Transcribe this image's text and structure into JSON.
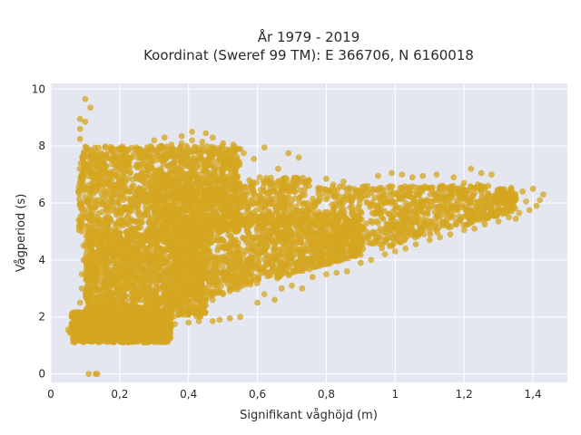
{
  "chart_data": {
    "type": "scatter",
    "title_line1": "År 1979 - 2019",
    "title_line2": "Koordinat (Sweref 99 TM): E 366706, N 6160018",
    "xlabel": "Signifikant våghöjd (m)",
    "ylabel": "Vågperiod (s)",
    "xlim": [
      0,
      1.5
    ],
    "ylim": [
      -0.3,
      10.2
    ],
    "x_ticks": [
      {
        "value": 0,
        "label": "0"
      },
      {
        "value": 0.2,
        "label": "0,2"
      },
      {
        "value": 0.4,
        "label": "0,4"
      },
      {
        "value": 0.6,
        "label": "0,6"
      },
      {
        "value": 0.8,
        "label": "0,8"
      },
      {
        "value": 1.0,
        "label": "1"
      },
      {
        "value": 1.2,
        "label": "1,2"
      },
      {
        "value": 1.4,
        "label": "1,4"
      }
    ],
    "y_ticks": [
      {
        "value": 0,
        "label": "0"
      },
      {
        "value": 2,
        "label": "2"
      },
      {
        "value": 4,
        "label": "4"
      },
      {
        "value": 6,
        "label": "6"
      },
      {
        "value": 8,
        "label": "8"
      },
      {
        "value": 10,
        "label": "10"
      }
    ],
    "grid": true,
    "background_color": "#e5e7f0",
    "grid_color": "#ffffff",
    "marker_color": "#d4a520",
    "series": [
      {
        "points": [
          [
            0.1,
            9.65
          ],
          [
            0.115,
            9.35
          ],
          [
            0.085,
            8.95
          ],
          [
            0.1,
            8.85
          ],
          [
            0.085,
            8.6
          ],
          [
            0.085,
            8.25
          ],
          [
            0.11,
            0.0
          ],
          [
            0.13,
            0.0
          ],
          [
            0.135,
            0.0
          ],
          [
            0.05,
            1.55
          ],
          [
            0.055,
            1.45
          ],
          [
            0.06,
            1.65
          ],
          [
            0.07,
            1.5
          ],
          [
            0.075,
            1.35
          ],
          [
            0.08,
            1.25
          ],
          [
            0.09,
            1.2
          ],
          [
            0.1,
            1.15
          ],
          [
            0.12,
            1.15
          ],
          [
            0.15,
            1.2
          ],
          [
            0.18,
            1.3
          ],
          [
            0.08,
            2.0
          ],
          [
            0.085,
            2.5
          ],
          [
            0.09,
            3.0
          ],
          [
            0.09,
            3.5
          ],
          [
            0.095,
            4.0
          ],
          [
            0.095,
            4.5
          ],
          [
            0.09,
            5.0
          ],
          [
            0.095,
            5.5
          ],
          [
            0.09,
            6.0
          ],
          [
            0.09,
            6.5
          ],
          [
            0.09,
            7.0
          ],
          [
            0.1,
            7.3
          ],
          [
            0.12,
            7.55
          ],
          [
            0.15,
            7.7
          ],
          [
            0.18,
            7.8
          ],
          [
            0.21,
            7.9
          ],
          [
            0.25,
            7.85
          ],
          [
            0.28,
            7.95
          ],
          [
            0.32,
            8.0
          ],
          [
            0.35,
            8.05
          ],
          [
            0.38,
            8.1
          ],
          [
            0.41,
            8.2
          ],
          [
            0.44,
            8.15
          ],
          [
            0.47,
            8.3
          ],
          [
            0.5,
            8.1
          ],
          [
            0.53,
            8.05
          ],
          [
            0.55,
            7.9
          ],
          [
            0.56,
            7.75
          ],
          [
            0.52,
            7.6
          ],
          [
            0.49,
            7.55
          ],
          [
            0.45,
            8.45
          ],
          [
            0.41,
            8.5
          ],
          [
            0.38,
            8.35
          ],
          [
            0.3,
            8.2
          ],
          [
            0.33,
            8.3
          ],
          [
            0.62,
            7.95
          ],
          [
            0.69,
            7.75
          ],
          [
            0.72,
            7.6
          ],
          [
            0.59,
            7.55
          ],
          [
            0.66,
            7.2
          ],
          [
            0.49,
            1.9
          ],
          [
            0.52,
            1.95
          ],
          [
            0.55,
            2.0
          ],
          [
            0.47,
            1.85
          ],
          [
            0.43,
            1.85
          ],
          [
            0.4,
            1.8
          ],
          [
            0.36,
            1.75
          ],
          [
            0.32,
            1.75
          ],
          [
            0.28,
            1.7
          ],
          [
            0.24,
            1.65
          ],
          [
            0.22,
            1.6
          ],
          [
            0.18,
            1.5
          ],
          [
            0.6,
            2.5
          ],
          [
            0.62,
            2.8
          ],
          [
            0.65,
            2.6
          ],
          [
            0.67,
            3.0
          ],
          [
            0.7,
            3.1
          ],
          [
            0.73,
            3.0
          ],
          [
            0.76,
            3.4
          ],
          [
            0.8,
            3.5
          ],
          [
            0.83,
            3.55
          ],
          [
            0.86,
            3.6
          ],
          [
            0.9,
            3.9
          ],
          [
            0.93,
            4.0
          ],
          [
            0.97,
            4.2
          ],
          [
            1.0,
            4.3
          ],
          [
            1.03,
            4.4
          ],
          [
            1.06,
            4.55
          ],
          [
            1.1,
            4.7
          ],
          [
            1.13,
            4.8
          ],
          [
            1.16,
            4.9
          ],
          [
            1.2,
            5.05
          ],
          [
            1.23,
            5.1
          ],
          [
            1.26,
            5.25
          ],
          [
            1.3,
            5.35
          ],
          [
            1.33,
            5.5
          ],
          [
            1.36,
            5.65
          ],
          [
            1.39,
            5.75
          ],
          [
            1.41,
            5.9
          ],
          [
            1.42,
            6.1
          ],
          [
            1.43,
            6.3
          ],
          [
            1.4,
            6.5
          ],
          [
            1.37,
            6.4
          ],
          [
            1.34,
            6.3
          ],
          [
            1.3,
            6.45
          ],
          [
            1.27,
            6.6
          ],
          [
            1.24,
            6.65
          ],
          [
            1.2,
            6.7
          ],
          [
            1.22,
            7.2
          ],
          [
            1.25,
            7.05
          ],
          [
            1.28,
            7.0
          ],
          [
            1.17,
            6.9
          ],
          [
            1.12,
            7.0
          ],
          [
            1.08,
            6.95
          ],
          [
            1.05,
            6.9
          ],
          [
            1.02,
            7.0
          ],
          [
            0.99,
            7.05
          ],
          [
            0.95,
            6.95
          ],
          [
            0.92,
            6.6
          ],
          [
            0.88,
            6.5
          ],
          [
            0.85,
            6.75
          ],
          [
            0.82,
            6.65
          ],
          [
            0.8,
            6.85
          ],
          [
            0.78,
            6.5
          ],
          [
            0.75,
            6.6
          ],
          [
            0.71,
            6.85
          ],
          [
            0.68,
            6.7
          ],
          [
            0.65,
            6.55
          ],
          [
            0.62,
            6.4
          ],
          [
            1.03,
            5.55
          ],
          [
            1.07,
            5.7
          ],
          [
            1.12,
            5.5
          ],
          [
            1.18,
            5.85
          ],
          [
            1.24,
            5.75
          ],
          [
            1.29,
            5.6
          ],
          [
            1.33,
            6.0
          ],
          [
            1.35,
            5.45
          ],
          [
            1.38,
            6.05
          ],
          [
            0.7,
            5.6
          ],
          [
            0.75,
            5.75
          ],
          [
            0.8,
            5.55
          ],
          [
            0.85,
            5.8
          ],
          [
            0.9,
            5.7
          ],
          [
            0.95,
            5.9
          ],
          [
            0.6,
            5.0
          ],
          [
            0.65,
            5.2
          ],
          [
            0.7,
            4.9
          ],
          [
            0.75,
            5.1
          ],
          [
            0.8,
            4.8
          ],
          [
            0.85,
            5.0
          ],
          [
            0.6,
            4.2
          ],
          [
            0.65,
            4.4
          ],
          [
            0.7,
            4.1
          ],
          [
            0.75,
            4.3
          ],
          [
            0.8,
            4.2
          ],
          [
            0.85,
            4.5
          ],
          [
            0.55,
            3.2
          ],
          [
            0.58,
            3.5
          ],
          [
            0.52,
            3.0
          ],
          [
            0.5,
            2.8
          ],
          [
            0.47,
            2.6
          ],
          [
            0.45,
            2.4
          ],
          [
            0.9,
            5.2
          ],
          [
            0.95,
            5.3
          ],
          [
            1.0,
            5.1
          ],
          [
            1.05,
            5.25
          ],
          [
            1.1,
            5.15
          ],
          [
            1.15,
            5.4
          ],
          [
            0.9,
            4.6
          ],
          [
            0.95,
            4.8
          ],
          [
            1.0,
            4.9
          ],
          [
            1.05,
            4.95
          ],
          [
            1.1,
            5.0
          ],
          [
            1.15,
            5.2
          ],
          [
            0.5,
            6.0
          ],
          [
            0.55,
            6.2
          ],
          [
            0.6,
            6.0
          ],
          [
            0.52,
            6.5
          ],
          [
            0.58,
            6.7
          ],
          [
            0.45,
            6.4
          ]
        ],
        "clusters": [
          {
            "x_range": [
              0.08,
              0.55
            ],
            "y_range": [
              5.0,
              8.0
            ],
            "count": 1400
          },
          {
            "x_range": [
              0.1,
              0.45
            ],
            "y_range": [
              2.0,
              5.0
            ],
            "count": 1600
          },
          {
            "x_range": [
              0.06,
              0.35
            ],
            "y_range": [
              1.1,
              2.2
            ],
            "count": 1000
          },
          {
            "x_range": [
              0.35,
              0.9
            ],
            "y_range": [
              2.3,
              5.6
            ],
            "count": 1200
          },
          {
            "x_range": [
              0.3,
              0.75
            ],
            "y_range": [
              5.2,
              6.9
            ],
            "count": 600
          },
          {
            "x_range": [
              0.75,
              1.35
            ],
            "y_range": [
              3.8,
              6.6
            ],
            "count": 900
          }
        ]
      }
    ]
  }
}
